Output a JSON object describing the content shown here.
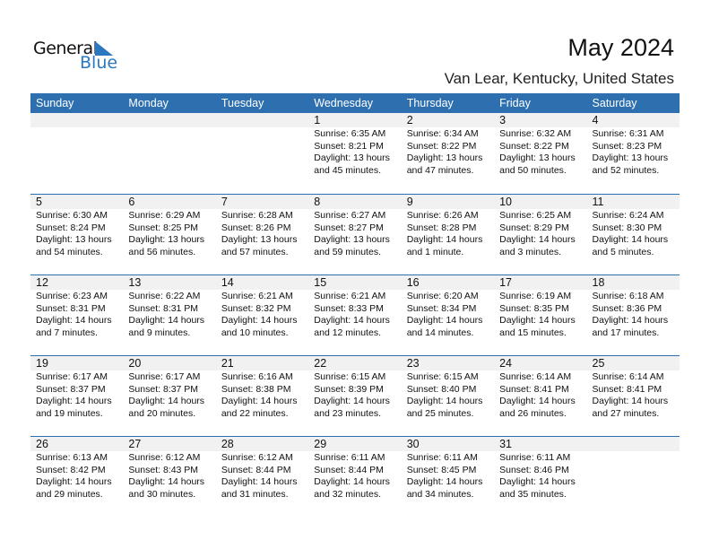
{
  "logo": {
    "line1": "General",
    "line2": "Blue"
  },
  "header": {
    "title": "May 2024",
    "location": "Van Lear, Kentucky, United States"
  },
  "weekdays": [
    "Sunday",
    "Monday",
    "Tuesday",
    "Wednesday",
    "Thursday",
    "Friday",
    "Saturday"
  ],
  "colors": {
    "header_bg": "#2e6fb0",
    "date_band": "#f1f1f1",
    "logo_blue": "#2a78c0"
  },
  "start_offset": 3,
  "days": [
    {
      "day": "1",
      "sunrise": "Sunrise: 6:35 AM",
      "sunset": "Sunset: 8:21 PM",
      "daylight": "Daylight: 13 hours",
      "minutes": "and 45 minutes."
    },
    {
      "day": "2",
      "sunrise": "Sunrise: 6:34 AM",
      "sunset": "Sunset: 8:22 PM",
      "daylight": "Daylight: 13 hours",
      "minutes": "and 47 minutes."
    },
    {
      "day": "3",
      "sunrise": "Sunrise: 6:32 AM",
      "sunset": "Sunset: 8:22 PM",
      "daylight": "Daylight: 13 hours",
      "minutes": "and 50 minutes."
    },
    {
      "day": "4",
      "sunrise": "Sunrise: 6:31 AM",
      "sunset": "Sunset: 8:23 PM",
      "daylight": "Daylight: 13 hours",
      "minutes": "and 52 minutes."
    },
    {
      "day": "5",
      "sunrise": "Sunrise: 6:30 AM",
      "sunset": "Sunset: 8:24 PM",
      "daylight": "Daylight: 13 hours",
      "minutes": "and 54 minutes."
    },
    {
      "day": "6",
      "sunrise": "Sunrise: 6:29 AM",
      "sunset": "Sunset: 8:25 PM",
      "daylight": "Daylight: 13 hours",
      "minutes": "and 56 minutes."
    },
    {
      "day": "7",
      "sunrise": "Sunrise: 6:28 AM",
      "sunset": "Sunset: 8:26 PM",
      "daylight": "Daylight: 13 hours",
      "minutes": "and 57 minutes."
    },
    {
      "day": "8",
      "sunrise": "Sunrise: 6:27 AM",
      "sunset": "Sunset: 8:27 PM",
      "daylight": "Daylight: 13 hours",
      "minutes": "and 59 minutes."
    },
    {
      "day": "9",
      "sunrise": "Sunrise: 6:26 AM",
      "sunset": "Sunset: 8:28 PM",
      "daylight": "Daylight: 14 hours",
      "minutes": "and 1 minute."
    },
    {
      "day": "10",
      "sunrise": "Sunrise: 6:25 AM",
      "sunset": "Sunset: 8:29 PM",
      "daylight": "Daylight: 14 hours",
      "minutes": "and 3 minutes."
    },
    {
      "day": "11",
      "sunrise": "Sunrise: 6:24 AM",
      "sunset": "Sunset: 8:30 PM",
      "daylight": "Daylight: 14 hours",
      "minutes": "and 5 minutes."
    },
    {
      "day": "12",
      "sunrise": "Sunrise: 6:23 AM",
      "sunset": "Sunset: 8:31 PM",
      "daylight": "Daylight: 14 hours",
      "minutes": "and 7 minutes."
    },
    {
      "day": "13",
      "sunrise": "Sunrise: 6:22 AM",
      "sunset": "Sunset: 8:31 PM",
      "daylight": "Daylight: 14 hours",
      "minutes": "and 9 minutes."
    },
    {
      "day": "14",
      "sunrise": "Sunrise: 6:21 AM",
      "sunset": "Sunset: 8:32 PM",
      "daylight": "Daylight: 14 hours",
      "minutes": "and 10 minutes."
    },
    {
      "day": "15",
      "sunrise": "Sunrise: 6:21 AM",
      "sunset": "Sunset: 8:33 PM",
      "daylight": "Daylight: 14 hours",
      "minutes": "and 12 minutes."
    },
    {
      "day": "16",
      "sunrise": "Sunrise: 6:20 AM",
      "sunset": "Sunset: 8:34 PM",
      "daylight": "Daylight: 14 hours",
      "minutes": "and 14 minutes."
    },
    {
      "day": "17",
      "sunrise": "Sunrise: 6:19 AM",
      "sunset": "Sunset: 8:35 PM",
      "daylight": "Daylight: 14 hours",
      "minutes": "and 15 minutes."
    },
    {
      "day": "18",
      "sunrise": "Sunrise: 6:18 AM",
      "sunset": "Sunset: 8:36 PM",
      "daylight": "Daylight: 14 hours",
      "minutes": "and 17 minutes."
    },
    {
      "day": "19",
      "sunrise": "Sunrise: 6:17 AM",
      "sunset": "Sunset: 8:37 PM",
      "daylight": "Daylight: 14 hours",
      "minutes": "and 19 minutes."
    },
    {
      "day": "20",
      "sunrise": "Sunrise: 6:17 AM",
      "sunset": "Sunset: 8:37 PM",
      "daylight": "Daylight: 14 hours",
      "minutes": "and 20 minutes."
    },
    {
      "day": "21",
      "sunrise": "Sunrise: 6:16 AM",
      "sunset": "Sunset: 8:38 PM",
      "daylight": "Daylight: 14 hours",
      "minutes": "and 22 minutes."
    },
    {
      "day": "22",
      "sunrise": "Sunrise: 6:15 AM",
      "sunset": "Sunset: 8:39 PM",
      "daylight": "Daylight: 14 hours",
      "minutes": "and 23 minutes."
    },
    {
      "day": "23",
      "sunrise": "Sunrise: 6:15 AM",
      "sunset": "Sunset: 8:40 PM",
      "daylight": "Daylight: 14 hours",
      "minutes": "and 25 minutes."
    },
    {
      "day": "24",
      "sunrise": "Sunrise: 6:14 AM",
      "sunset": "Sunset: 8:41 PM",
      "daylight": "Daylight: 14 hours",
      "minutes": "and 26 minutes."
    },
    {
      "day": "25",
      "sunrise": "Sunrise: 6:14 AM",
      "sunset": "Sunset: 8:41 PM",
      "daylight": "Daylight: 14 hours",
      "minutes": "and 27 minutes."
    },
    {
      "day": "26",
      "sunrise": "Sunrise: 6:13 AM",
      "sunset": "Sunset: 8:42 PM",
      "daylight": "Daylight: 14 hours",
      "minutes": "and 29 minutes."
    },
    {
      "day": "27",
      "sunrise": "Sunrise: 6:12 AM",
      "sunset": "Sunset: 8:43 PM",
      "daylight": "Daylight: 14 hours",
      "minutes": "and 30 minutes."
    },
    {
      "day": "28",
      "sunrise": "Sunrise: 6:12 AM",
      "sunset": "Sunset: 8:44 PM",
      "daylight": "Daylight: 14 hours",
      "minutes": "and 31 minutes."
    },
    {
      "day": "29",
      "sunrise": "Sunrise: 6:11 AM",
      "sunset": "Sunset: 8:44 PM",
      "daylight": "Daylight: 14 hours",
      "minutes": "and 32 minutes."
    },
    {
      "day": "30",
      "sunrise": "Sunrise: 6:11 AM",
      "sunset": "Sunset: 8:45 PM",
      "daylight": "Daylight: 14 hours",
      "minutes": "and 34 minutes."
    },
    {
      "day": "31",
      "sunrise": "Sunrise: 6:11 AM",
      "sunset": "Sunset: 8:46 PM",
      "daylight": "Daylight: 14 hours",
      "minutes": "and 35 minutes."
    }
  ]
}
